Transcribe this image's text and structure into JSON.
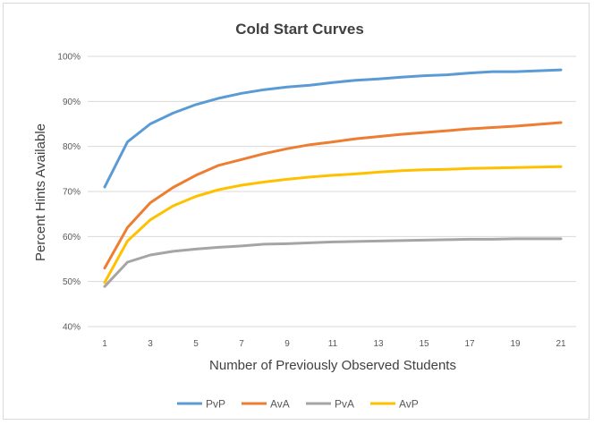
{
  "chart_data": {
    "type": "line",
    "title": "Cold Start Curves",
    "xlabel": "Number of Previously Observed Students",
    "ylabel": "Percent Hints Available",
    "x": [
      1,
      2,
      3,
      4,
      5,
      6,
      7,
      8,
      9,
      10,
      11,
      12,
      13,
      14,
      15,
      16,
      17,
      18,
      19,
      20,
      21
    ],
    "xticks": [
      "1",
      "3",
      "5",
      "7",
      "9",
      "11",
      "13",
      "15",
      "17",
      "19",
      "21"
    ],
    "yticks": [
      "40%",
      "50%",
      "60%",
      "70%",
      "80%",
      "90%",
      "100%"
    ],
    "ylim": [
      0.4,
      1.0
    ],
    "grid": true,
    "legend_position": "bottom",
    "series": [
      {
        "name": "PvP",
        "color": "#5b9bd5",
        "values": [
          0.71,
          0.81,
          0.85,
          0.874,
          0.893,
          0.907,
          0.918,
          0.926,
          0.932,
          0.936,
          0.942,
          0.947,
          0.95,
          0.954,
          0.957,
          0.959,
          0.963,
          0.966,
          0.966,
          0.968,
          0.97
        ]
      },
      {
        "name": "AvA",
        "color": "#ed7d31",
        "values": [
          0.53,
          0.62,
          0.675,
          0.709,
          0.736,
          0.758,
          0.771,
          0.784,
          0.795,
          0.804,
          0.81,
          0.817,
          0.822,
          0.827,
          0.831,
          0.835,
          0.839,
          0.842,
          0.845,
          0.849,
          0.853
        ]
      },
      {
        "name": "PvA",
        "color": "#a5a5a5",
        "values": [
          0.489,
          0.543,
          0.559,
          0.567,
          0.572,
          0.576,
          0.579,
          0.583,
          0.584,
          0.586,
          0.588,
          0.589,
          0.59,
          0.591,
          0.592,
          0.593,
          0.594,
          0.594,
          0.595,
          0.595,
          0.595
        ]
      },
      {
        "name": "AvP",
        "color": "#ffc000",
        "values": [
          0.498,
          0.59,
          0.637,
          0.668,
          0.689,
          0.704,
          0.714,
          0.721,
          0.727,
          0.732,
          0.736,
          0.739,
          0.743,
          0.746,
          0.748,
          0.749,
          0.751,
          0.752,
          0.753,
          0.754,
          0.755
        ]
      }
    ]
  }
}
